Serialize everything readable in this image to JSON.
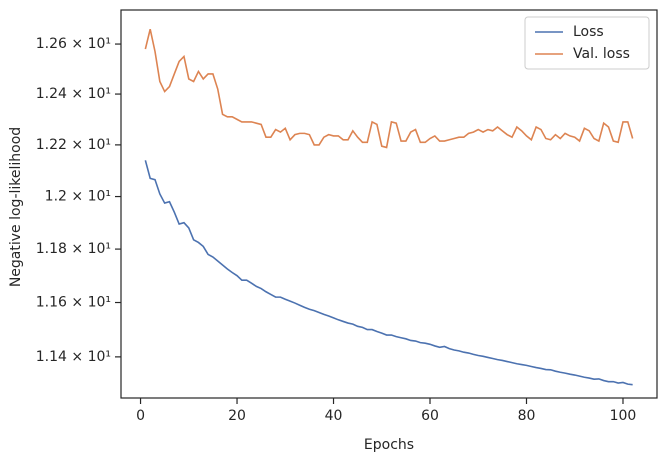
{
  "chart_data": {
    "type": "line",
    "xlabel": "Epochs",
    "ylabel": "Negative log-likelihood",
    "x": [
      1,
      2,
      3,
      4,
      5,
      6,
      7,
      8,
      9,
      10,
      11,
      12,
      13,
      14,
      15,
      16,
      17,
      18,
      19,
      20,
      21,
      22,
      23,
      24,
      25,
      26,
      27,
      28,
      29,
      30,
      31,
      32,
      33,
      34,
      35,
      36,
      37,
      38,
      39,
      40,
      41,
      42,
      43,
      44,
      45,
      46,
      47,
      48,
      49,
      50,
      51,
      52,
      53,
      54,
      55,
      56,
      57,
      58,
      59,
      60,
      61,
      62,
      63,
      64,
      65,
      66,
      67,
      68,
      69,
      70,
      71,
      72,
      73,
      74,
      75,
      76,
      77,
      78,
      79,
      80,
      81,
      82,
      83,
      84,
      85,
      86,
      87,
      88,
      89,
      90,
      91,
      92,
      93,
      94,
      95,
      96,
      97,
      98,
      99,
      100,
      101,
      102
    ],
    "series": [
      {
        "name": "Loss",
        "color": "#4c72b0",
        "values": [
          12.14,
          12.07,
          12.065,
          12.01,
          11.975,
          11.98,
          11.94,
          11.895,
          11.9,
          11.88,
          11.835,
          11.825,
          11.81,
          11.78,
          11.77,
          11.755,
          11.74,
          11.725,
          11.712,
          11.7,
          11.683,
          11.683,
          11.672,
          11.66,
          11.652,
          11.64,
          11.63,
          11.62,
          11.62,
          11.612,
          11.605,
          11.598,
          11.59,
          11.582,
          11.575,
          11.57,
          11.563,
          11.556,
          11.55,
          11.543,
          11.536,
          11.53,
          11.524,
          11.52,
          11.512,
          11.508,
          11.5,
          11.5,
          11.493,
          11.487,
          11.48,
          11.48,
          11.474,
          11.47,
          11.466,
          11.46,
          11.458,
          11.452,
          11.45,
          11.446,
          11.44,
          11.435,
          11.438,
          11.43,
          11.425,
          11.422,
          11.417,
          11.414,
          11.409,
          11.405,
          11.402,
          11.398,
          11.394,
          11.39,
          11.387,
          11.383,
          11.379,
          11.375,
          11.372,
          11.369,
          11.365,
          11.361,
          11.358,
          11.354,
          11.353,
          11.348,
          11.344,
          11.341,
          11.337,
          11.334,
          11.33,
          11.326,
          11.323,
          11.319,
          11.32,
          11.314,
          11.31,
          11.31,
          11.305,
          11.307,
          11.301,
          11.299
        ]
      },
      {
        "name": "Val. loss",
        "color": "#dd8452",
        "values": [
          12.58,
          12.66,
          12.57,
          12.45,
          12.41,
          12.43,
          12.48,
          12.53,
          12.55,
          12.46,
          12.45,
          12.49,
          12.46,
          12.48,
          12.48,
          12.42,
          12.32,
          12.31,
          12.31,
          12.3,
          12.29,
          12.29,
          12.29,
          12.285,
          12.28,
          12.23,
          12.23,
          12.26,
          12.25,
          12.265,
          12.22,
          12.24,
          12.245,
          12.245,
          12.24,
          12.2,
          12.2,
          12.23,
          12.24,
          12.235,
          12.235,
          12.22,
          12.22,
          12.255,
          12.23,
          12.21,
          12.21,
          12.29,
          12.28,
          12.195,
          12.19,
          12.29,
          12.285,
          12.215,
          12.215,
          12.25,
          12.26,
          12.21,
          12.21,
          12.225,
          12.235,
          12.215,
          12.215,
          12.22,
          12.225,
          12.23,
          12.23,
          12.245,
          12.25,
          12.26,
          12.25,
          12.26,
          12.255,
          12.27,
          12.255,
          12.24,
          12.23,
          12.27,
          12.255,
          12.235,
          12.22,
          12.27,
          12.26,
          12.225,
          12.22,
          12.24,
          12.225,
          12.245,
          12.235,
          12.23,
          12.215,
          12.265,
          12.255,
          12.225,
          12.215,
          12.285,
          12.27,
          12.215,
          12.21,
          12.29,
          12.29,
          12.225
        ]
      }
    ],
    "xlim": [
      -4.05,
      107.05
    ],
    "xticks": [
      0,
      20,
      40,
      60,
      80,
      100
    ],
    "ylim": [
      11.251,
      12.738
    ],
    "yscale": "log",
    "yticks": [
      {
        "value": 11.4,
        "label": "1.14 × 10¹"
      },
      {
        "value": 11.6,
        "label": "1.16 × 10¹"
      },
      {
        "value": 11.8,
        "label": "1.18 × 10¹"
      },
      {
        "value": 12.0,
        "label": "1.2 × 10¹"
      },
      {
        "value": 12.2,
        "label": "1.22 × 10¹"
      },
      {
        "value": 12.4,
        "label": "1.24 × 10¹"
      },
      {
        "value": 12.6,
        "label": "1.26 × 10¹"
      }
    ],
    "grid": false,
    "legend": "upper right"
  }
}
